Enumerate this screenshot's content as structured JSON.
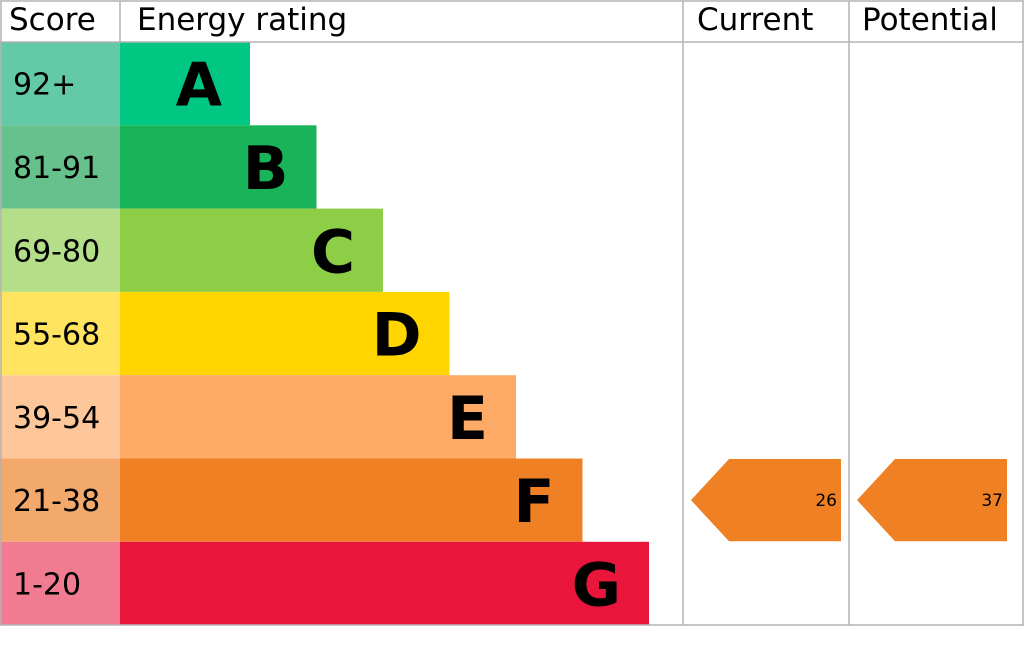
{
  "chart_data": {
    "type": "bar",
    "headers": {
      "score": "Score",
      "rating": "Energy rating",
      "current": "Current",
      "potential": "Potential"
    },
    "bands": [
      {
        "letter": "A",
        "range": "92+",
        "color": "#00c781",
        "score_color": "#64c9a6"
      },
      {
        "letter": "B",
        "range": "81-91",
        "color": "#19b459",
        "score_color": "#67c18d"
      },
      {
        "letter": "C",
        "range": "69-80",
        "color": "#8dce46",
        "score_color": "#b5de89"
      },
      {
        "letter": "D",
        "range": "55-68",
        "color": "#ffd500",
        "score_color": "#ffe45f"
      },
      {
        "letter": "E",
        "range": "39-54",
        "color": "#fcaa65",
        "score_color": "#fdc79a"
      },
      {
        "letter": "F",
        "range": "21-38",
        "color": "#ef8023",
        "score_color": "#f4a96c"
      },
      {
        "letter": "G",
        "range": "1-20",
        "color": "#e9153b",
        "score_color": "#f17b90"
      }
    ],
    "current": {
      "value": 26,
      "label": "26",
      "band": "F",
      "color": "#ef8023"
    },
    "potential": {
      "value": 37,
      "label": "37",
      "band": "F",
      "color": "#ef8023"
    }
  }
}
